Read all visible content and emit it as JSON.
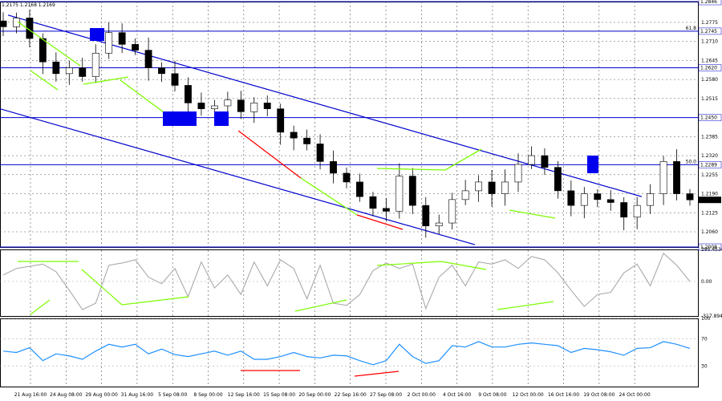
{
  "header": {
    "ohlc_text": "1.2175 1.2168 1.2169"
  },
  "chart_data": [
    {
      "type": "candlestick",
      "title": "",
      "y_ticks": [
        "1.2775",
        "1.2710",
        "1.2645",
        "1.2580",
        "1.2515",
        "1.2385",
        "1.2320",
        "1.2255",
        "1.2190",
        "1.2125",
        "1.2060"
      ],
      "ylim": [
        1.2008,
        1.2846
      ],
      "current_price": "1.2169",
      "horizontal_levels": [
        {
          "value": "1.2846",
          "label": ""
        },
        {
          "value": "1.2745",
          "label": "61.8"
        },
        {
          "value": "1.2620",
          "label": ""
        },
        {
          "value": "1.2450",
          "label": ""
        },
        {
          "value": "1.2289",
          "label": "50.0"
        },
        {
          "value": "1.2008",
          "label": ""
        }
      ],
      "x_ticks": [
        "21 Aug 16:00",
        "24 Aug 08:00",
        "29 Aug 00:00",
        "31 Aug 16:00",
        "5 Sep 08:00",
        "8 Sep 00:00",
        "12 Sep 16:00",
        "15 Sep 08:00",
        "20 Sep 00:00",
        "22 Sep 16:00",
        "27 Sep 08:00",
        "2 Oct 00:00",
        "4 Oct 16:00",
        "9 Oct 08:00",
        "12 Oct 00:00",
        "16 Oct 16:00",
        "19 Oct 08:00",
        "24 Oct 00:00"
      ],
      "close_series": [
        1.276,
        1.279,
        1.272,
        1.264,
        1.26,
        1.262,
        1.259,
        1.267,
        1.274,
        1.27,
        1.268,
        1.262,
        1.26,
        1.256,
        1.25,
        1.248,
        1.249,
        1.251,
        1.247,
        1.25,
        1.248,
        1.24,
        1.238,
        1.236,
        1.23,
        1.226,
        1.223,
        1.218,
        1.214,
        1.213,
        1.225,
        1.215,
        1.208,
        1.209,
        1.217,
        1.22,
        1.223,
        1.219,
        1.223,
        1.229,
        1.232,
        1.228,
        1.22,
        1.215,
        1.219,
        1.217,
        1.216,
        1.211,
        1.215,
        1.219,
        1.23,
        1.219,
        1.2169
      ],
      "colors": {
        "channel": "#0000cc",
        "bullish_divergence": "#7cfc00",
        "bearish_divergence": "#ff0000",
        "marker": "#0000ee",
        "grid": "#555555"
      }
    },
    {
      "type": "line",
      "indicator": "",
      "y_ticks": [
        "295.4534",
        "0.00",
        "-317.8949"
      ],
      "ylim": [
        -317.8949,
        295.4534
      ],
      "values": [
        60,
        120,
        140,
        160,
        90,
        -80,
        -260,
        -200,
        150,
        170,
        200,
        40,
        -20,
        120,
        -140,
        180,
        -60,
        60,
        -120,
        180,
        -40,
        200,
        120,
        -160,
        150,
        -200,
        -220,
        -120,
        100,
        170,
        120,
        160,
        -250,
        40,
        150,
        -40,
        180,
        160,
        200,
        120,
        230,
        200,
        80,
        -80,
        -230,
        -120,
        -100,
        80,
        160,
        -40,
        260,
        150,
        0
      ],
      "color": "#aaaaaa"
    },
    {
      "type": "line",
      "indicator": "",
      "y_ticks": [
        "100",
        "70",
        "30"
      ],
      "ylim": [
        0,
        100
      ],
      "values": [
        52,
        50,
        57,
        38,
        48,
        45,
        40,
        52,
        62,
        58,
        62,
        48,
        55,
        47,
        44,
        48,
        52,
        46,
        52,
        40,
        40,
        44,
        50,
        44,
        42,
        46,
        45,
        38,
        32,
        38,
        62,
        44,
        34,
        38,
        60,
        58,
        66,
        58,
        58,
        62,
        64,
        62,
        60,
        50,
        56,
        54,
        51,
        46,
        56,
        57,
        66,
        62,
        56
      ],
      "color": "#1e90ff"
    }
  ]
}
